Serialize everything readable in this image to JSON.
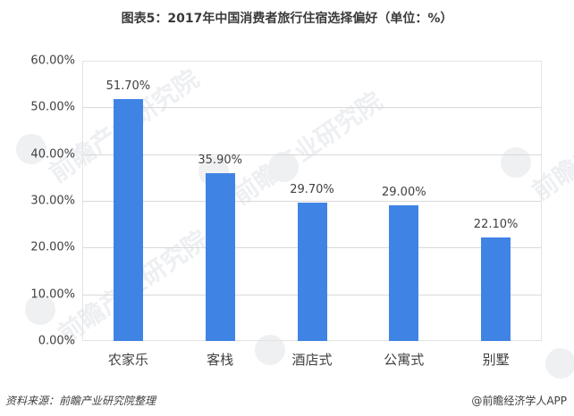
{
  "title": "图表5：2017年中国消费者旅行住宿选择偏好（单位：%）",
  "chart_data": {
    "type": "bar",
    "title": "图表5：2017年中国消费者旅行住宿选择偏好（单位：%）",
    "categories": [
      "农家乐",
      "客栈",
      "酒店式",
      "公寓式",
      "别墅"
    ],
    "values": [
      51.7,
      35.9,
      29.7,
      29.0,
      22.1
    ],
    "value_labels": [
      "51.70%",
      "35.90%",
      "29.70%",
      "29.00%",
      "22.10%"
    ],
    "xlabel": "",
    "ylabel": "",
    "ylim": [
      0,
      60
    ],
    "yticks": [
      "0.00%",
      "10.00%",
      "20.00%",
      "30.00%",
      "40.00%",
      "50.00%",
      "60.00%"
    ],
    "grid": true,
    "legend": null,
    "bar_color": "#3f84e5"
  },
  "footer": {
    "source": "资料来源：前瞻产业研究院整理",
    "brand": "@前瞻经济学人APP"
  },
  "watermark": {
    "text": "前瞻产业研究院"
  }
}
